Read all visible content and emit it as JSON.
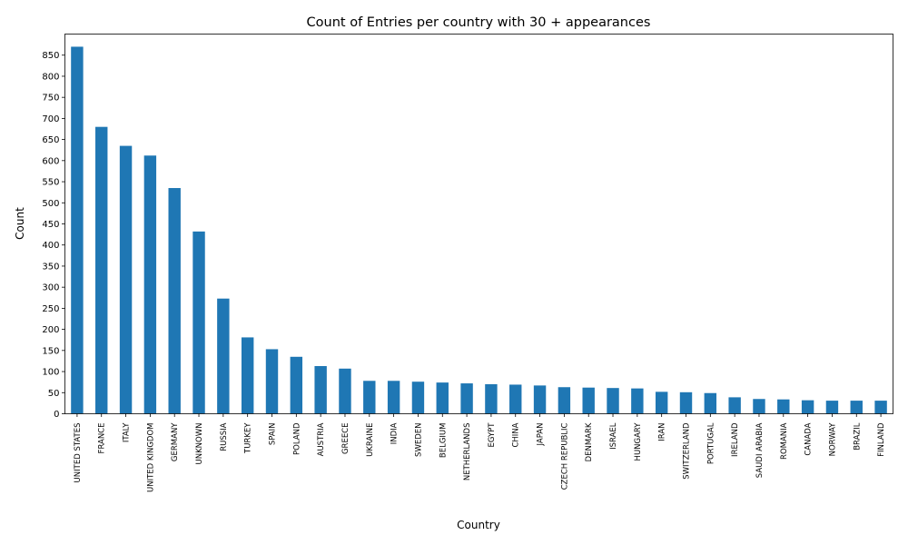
{
  "chart_data": {
    "type": "bar",
    "title": "Count of Entries per country with 30 + appearances",
    "xlabel": "Country",
    "ylabel": "Count",
    "ylim": [
      0,
      900
    ],
    "yticks": [
      0,
      50,
      100,
      150,
      200,
      250,
      300,
      350,
      400,
      450,
      500,
      550,
      600,
      650,
      700,
      750,
      800,
      850
    ],
    "grid": false,
    "bar_color": "#1f77b4",
    "categories": [
      "UNITED STATES",
      "FRANCE",
      "ITALY",
      "UNITED KINGDOM",
      "GERMANY",
      "UNKNOWN",
      "RUSSIA",
      "TURKEY",
      "SPAIN",
      "POLAND",
      "AUSTRIA",
      "GREECE",
      "UKRAINE",
      "INDIA",
      "SWEDEN",
      "BELGIUM",
      "NETHERLANDS",
      "EGYPT",
      "CHINA",
      "JAPAN",
      "CZECH REPUBLIC",
      "DENMARK",
      "ISRAEL",
      "HUNGARY",
      "IRAN",
      "SWITZERLAND",
      "PORTUGAL",
      "IRELAND",
      "SAUDI ARABIA",
      "ROMANIA",
      "CANADA",
      "NORWAY",
      "BRAZIL",
      "FINLAND"
    ],
    "values": [
      870,
      680,
      635,
      612,
      535,
      432,
      273,
      181,
      153,
      135,
      113,
      107,
      78,
      78,
      76,
      74,
      72,
      70,
      69,
      67,
      63,
      62,
      61,
      60,
      52,
      51,
      49,
      39,
      35,
      34,
      32,
      31,
      31,
      31
    ]
  }
}
